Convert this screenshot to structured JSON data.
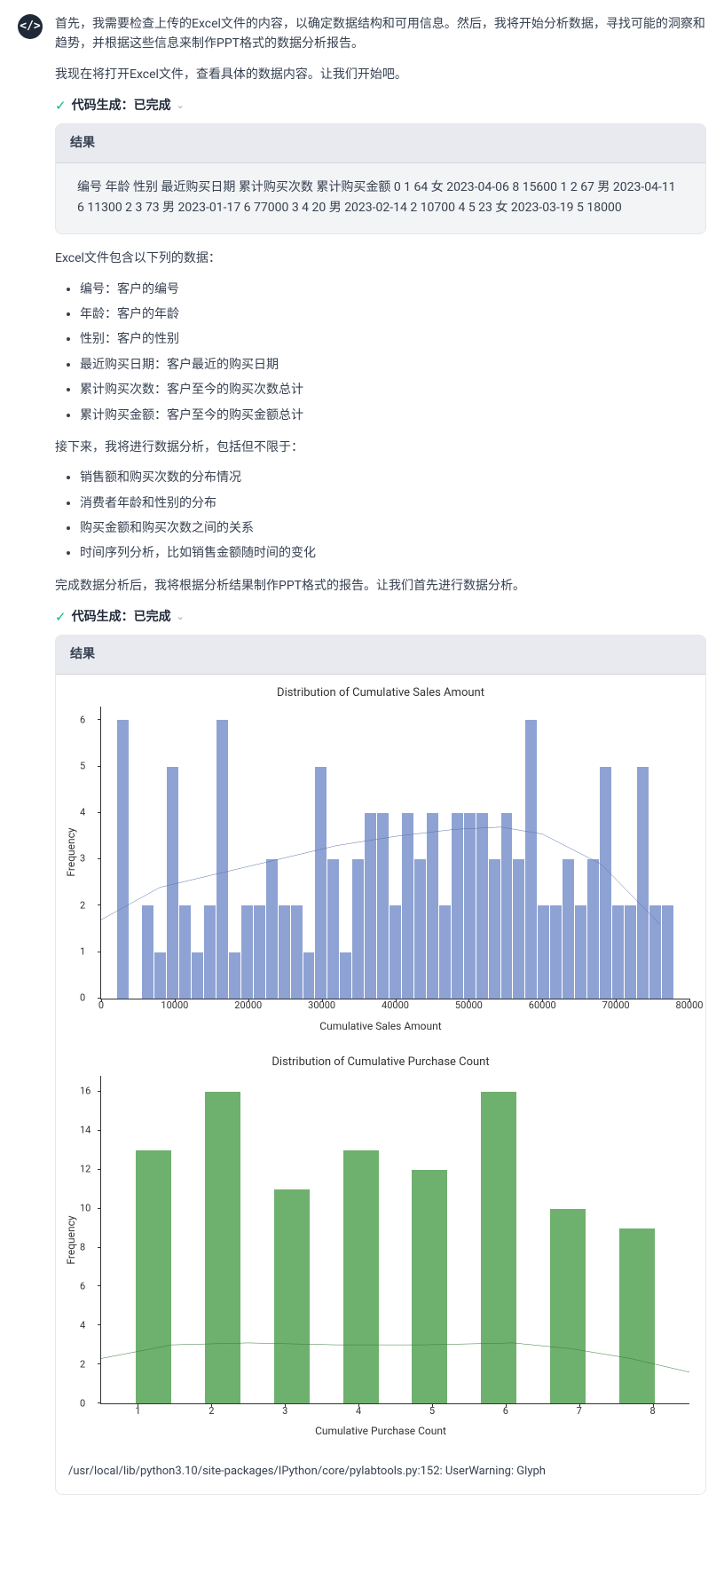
{
  "intro": {
    "p1": "首先，我需要检查上传的Excel文件的内容，以确定数据结构和可用信息。然后，我将开始分析数据，寻找可能的洞察和趋势，并根据这些信息来制作PPT格式的数据分析报告。",
    "p2": "我现在将打开Excel文件，查看具体的数据内容。让我们开始吧。"
  },
  "status": {
    "label": "代码生成：",
    "state": "已完成"
  },
  "result1": {
    "header": "结果",
    "body": "编号 年龄 性别 最近购买日期 累计购买次数 累计购买金额 0 1 64 女 2023-04-06 8 15600 1 2 67 男 2023-04-11 6 11300 2 3 73 男 2023-01-17 6 77000 3 4 20 男 2023-02-14 2 10700 4 5 23 女 2023-03-19 5 18000"
  },
  "explain": {
    "p1": "Excel文件包含以下列的数据：",
    "cols": [
      "编号：客户的编号",
      "年龄：客户的年龄",
      "性别：客户的性别",
      "最近购买日期：客户最近的购买日期",
      "累计购买次数：客户至今的购买次数总计",
      "累计购买金额：客户至今的购买金额总计"
    ],
    "p2": "接下来，我将进行数据分析，包括但不限于：",
    "analysis": [
      "销售额和购买次数的分布情况",
      "消费者年龄和性别的分布",
      "购买金额和购买次数之间的关系",
      "时间序列分析，比如销售金额随时间的变化"
    ],
    "p3": "完成数据分析后，我将根据分析结果制作PPT格式的报告。让我们首先进行数据分析。"
  },
  "result2": {
    "header": "结果"
  },
  "chart1": {
    "type": "histogram",
    "title": "Distribution of Cumulative Sales Amount",
    "xlabel": "Cumulative Sales Amount",
    "ylabel": "Frequency",
    "bar_color": "#8ea3d4",
    "kde_color": "#5a73a8",
    "background_color": "#ffffff",
    "xlim": [
      0,
      80000
    ],
    "ylim": [
      0,
      6.3
    ],
    "yticks": [
      0,
      1,
      2,
      3,
      4,
      5,
      6
    ],
    "xticks": [
      0,
      10000,
      20000,
      30000,
      40000,
      50000,
      60000,
      70000,
      80000
    ],
    "bar_values": [
      0,
      6,
      0,
      2,
      1,
      5,
      2,
      1,
      2,
      6,
      1,
      2,
      2,
      3,
      2,
      2,
      1,
      5,
      3,
      1,
      3,
      4,
      4,
      2,
      4,
      3,
      4,
      2,
      4,
      4,
      4,
      3,
      4,
      3,
      6,
      2,
      2,
      3,
      2,
      3,
      5,
      2,
      2,
      5,
      2,
      2,
      0
    ],
    "kde_points": [
      [
        0,
        1.7
      ],
      [
        10,
        2.4
      ],
      [
        20,
        2.7
      ],
      [
        30,
        3.0
      ],
      [
        40,
        3.3
      ],
      [
        50,
        3.5
      ],
      [
        60,
        3.65
      ],
      [
        68,
        3.7
      ],
      [
        75,
        3.55
      ],
      [
        85,
        2.9
      ],
      [
        95,
        1.6
      ]
    ]
  },
  "chart2": {
    "type": "bar",
    "title": "Distribution of Cumulative Purchase Count",
    "xlabel": "Cumulative Purchase Count",
    "ylabel": "Frequency",
    "bar_color": "#6eb06e",
    "kde_color": "#3a7a3a",
    "background_color": "#ffffff",
    "xlim": [
      1,
      8
    ],
    "ylim": [
      0,
      16.8
    ],
    "yticks": [
      0,
      2,
      4,
      6,
      8,
      10,
      12,
      14,
      16
    ],
    "xticks": [
      1,
      2,
      3,
      4,
      5,
      6,
      7,
      8
    ],
    "bar_values": [
      13,
      16,
      11,
      13,
      12,
      16,
      10,
      9
    ],
    "kde_points": [
      [
        0,
        2.3
      ],
      [
        12,
        3.0
      ],
      [
        25,
        3.1
      ],
      [
        40,
        3.0
      ],
      [
        55,
        3.0
      ],
      [
        70,
        3.1
      ],
      [
        80,
        2.8
      ],
      [
        90,
        2.3
      ],
      [
        100,
        1.6
      ]
    ]
  },
  "warning": "/usr/local/lib/python3.10/site-packages/IPython/core/pylabtools.py:152: UserWarning: Glyph"
}
